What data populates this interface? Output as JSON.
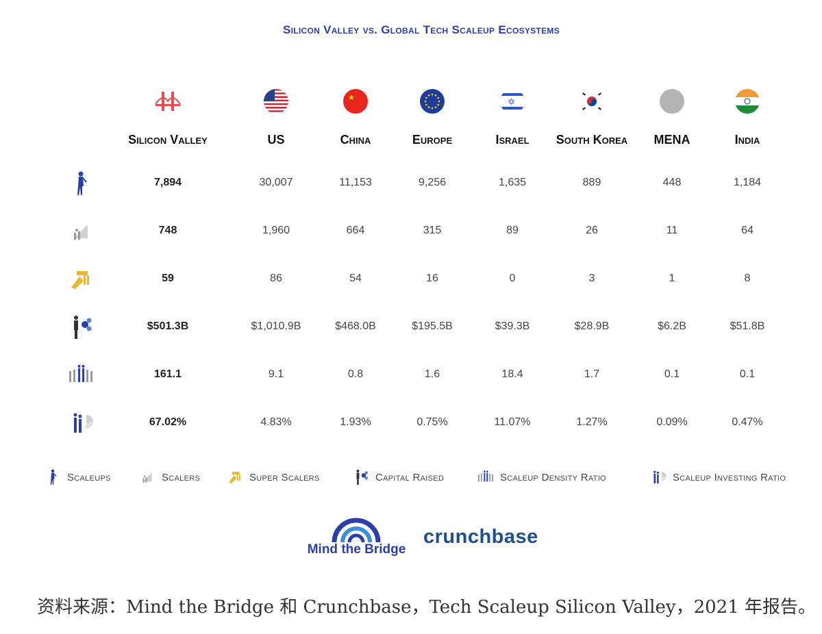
{
  "title": "Silicon Valley vs. Global Tech Scaleup Ecosystems",
  "columns": [
    {
      "name": "Silicon Valley",
      "icon": "golden-gate-bridge-icon"
    },
    {
      "name": "US",
      "icon": "us-flag-icon"
    },
    {
      "name": "China",
      "icon": "china-flag-icon"
    },
    {
      "name": "Europe",
      "icon": "eu-flag-icon"
    },
    {
      "name": "Israel",
      "icon": "israel-flag-icon"
    },
    {
      "name": "South Korea",
      "icon": "south-korea-flag-icon"
    },
    {
      "name": "MENA",
      "icon": "mena-circle-icon"
    },
    {
      "name": "India",
      "icon": "india-flag-icon"
    }
  ],
  "rows": [
    {
      "icon": "scaleups-icon",
      "cells": [
        "7,894",
        "30,007",
        "11,153",
        "9,256",
        "1,635",
        "889",
        "448",
        "1,184"
      ]
    },
    {
      "icon": "scalers-icon",
      "cells": [
        "748",
        "1,960",
        "664",
        "315",
        "89",
        "26",
        "11",
        "64"
      ]
    },
    {
      "icon": "super-scalers-icon",
      "cells": [
        "59",
        "86",
        "54",
        "16",
        "0",
        "3",
        "1",
        "8"
      ]
    },
    {
      "icon": "capital-raised-icon",
      "cells": [
        "$501.3B",
        "$1,010.9B",
        "$468.0B",
        "$195.5B",
        "$39.3B",
        "$28.9B",
        "$6.2B",
        "$51.8B"
      ]
    },
    {
      "icon": "scaleup-density-ratio-icon",
      "cells": [
        "161.1",
        "9.1",
        "0.8",
        "1.6",
        "18.4",
        "1.7",
        "0.1",
        "0.1"
      ]
    },
    {
      "icon": "scaleup-investing-ratio-icon",
      "cells": [
        "67.02%",
        "4.83%",
        "1.93%",
        "0.75%",
        "11.07%",
        "1.27%",
        "0.09%",
        "0.47%"
      ]
    }
  ],
  "legend": [
    {
      "label": "Scaleups",
      "icon": "scaleups-icon"
    },
    {
      "label": "Scalers",
      "icon": "scalers-icon"
    },
    {
      "label": "Super Scalers",
      "icon": "super-scalers-icon"
    },
    {
      "label": "Capital Raised",
      "icon": "capital-raised-icon"
    },
    {
      "label": "Scaleup Density Ratio",
      "icon": "scaleup-density-ratio-icon"
    },
    {
      "label": "Scaleup Investing Ratio",
      "icon": "scaleup-investing-ratio-icon"
    }
  ],
  "logos": {
    "mind_the_bridge": "Mind the Bridge",
    "crunchbase": "crunchbase"
  },
  "source": "资料来源：Mind the Bridge 和 Crunchbase，Tech Scaleup Silicon Valley，2021 年报告。",
  "colors": {
    "title": "#2a3fa8",
    "figure_blue": "#2a3fa8",
    "gold": "#e8b830"
  },
  "chart_data": {
    "type": "table",
    "title": "Silicon Valley vs. Global Tech Scaleup Ecosystems",
    "categories": [
      "Silicon Valley",
      "US",
      "China",
      "Europe",
      "Israel",
      "South Korea",
      "MENA",
      "India"
    ],
    "series": [
      {
        "name": "Scaleups",
        "values": [
          7894,
          30007,
          11153,
          9256,
          1635,
          889,
          448,
          1184
        ]
      },
      {
        "name": "Scalers",
        "values": [
          748,
          1960,
          664,
          315,
          89,
          26,
          11,
          64
        ]
      },
      {
        "name": "Super Scalers",
        "values": [
          59,
          86,
          54,
          16,
          0,
          3,
          1,
          8
        ]
      },
      {
        "name": "Capital Raised",
        "values": [
          "$501.3B",
          "$1,010.9B",
          "$468.0B",
          "$195.5B",
          "$39.3B",
          "$28.9B",
          "$6.2B",
          "$51.8B"
        ]
      },
      {
        "name": "Scaleup Density Ratio",
        "values": [
          161.1,
          9.1,
          0.8,
          1.6,
          18.4,
          1.7,
          0.1,
          0.1
        ]
      },
      {
        "name": "Scaleup Investing Ratio",
        "values": [
          "67.02%",
          "4.83%",
          "1.93%",
          "0.75%",
          "11.07%",
          "1.27%",
          "0.09%",
          "0.47%"
        ]
      }
    ]
  }
}
